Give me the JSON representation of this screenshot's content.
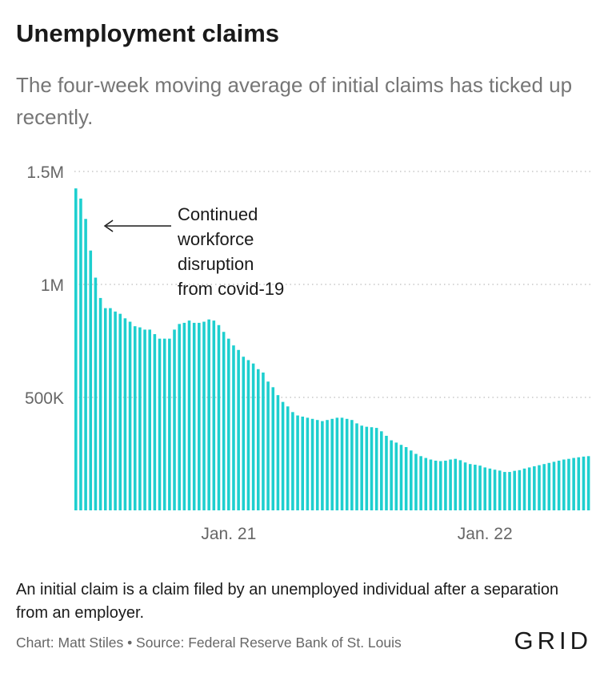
{
  "header": {
    "title": "Unemployment claims",
    "subtitle": "The four-week moving average of initial claims has ticked up recently."
  },
  "footer": {
    "note": "An initial claim is a claim filed by an unemployed individual after a separation from an employer.",
    "credit": "Chart: Matt Stiles • Source: Federal Reserve Bank of St. Louis",
    "logo": "GRID"
  },
  "colors": {
    "bar": "#1ecfcf",
    "grid": "#c8c8c8",
    "axis_text": "#666666",
    "annotation": "#1a1a1a"
  },
  "chart_data": {
    "type": "bar",
    "title": "Unemployment claims",
    "subtitle": "The four-week moving average of initial claims has ticked up recently.",
    "xlabel": "",
    "ylabel": "",
    "ylim": [
      0,
      1500000
    ],
    "grid": true,
    "y_ticks": [
      {
        "value": 1500000,
        "label": "1.5M"
      },
      {
        "value": 1000000,
        "label": "1M"
      },
      {
        "value": 500000,
        "label": "500K"
      }
    ],
    "x_ticks": [
      {
        "bar_index": 31,
        "label": "Jan. 21"
      },
      {
        "bar_index": 83,
        "label": "Jan. 22"
      }
    ],
    "annotation": {
      "lines": [
        "Continued",
        "workforce",
        "disruption",
        "from covid-19"
      ],
      "points_to_bar_index": 3
    },
    "series": [
      {
        "values": [
          1425000,
          1380000,
          1290000,
          1150000,
          1030000,
          940000,
          895000,
          895000,
          880000,
          870000,
          850000,
          835000,
          815000,
          810000,
          800000,
          800000,
          780000,
          760000,
          760000,
          760000,
          800000,
          825000,
          830000,
          840000,
          830000,
          830000,
          835000,
          845000,
          840000,
          820000,
          790000,
          760000,
          730000,
          710000,
          680000,
          665000,
          650000,
          625000,
          610000,
          570000,
          545000,
          510000,
          480000,
          460000,
          435000,
          420000,
          415000,
          410000,
          405000,
          400000,
          395000,
          400000,
          405000,
          410000,
          410000,
          405000,
          400000,
          385000,
          375000,
          370000,
          368000,
          365000,
          350000,
          330000,
          310000,
          300000,
          290000,
          280000,
          265000,
          250000,
          240000,
          232000,
          225000,
          220000,
          218000,
          220000,
          225000,
          228000,
          222000,
          212000,
          205000,
          202000,
          198000,
          190000,
          185000,
          180000,
          176000,
          170000,
          170000,
          175000,
          178000,
          185000,
          190000,
          195000,
          200000,
          205000,
          210000,
          215000,
          220000,
          225000,
          228000,
          232000,
          235000,
          238000,
          240000
        ]
      }
    ]
  }
}
